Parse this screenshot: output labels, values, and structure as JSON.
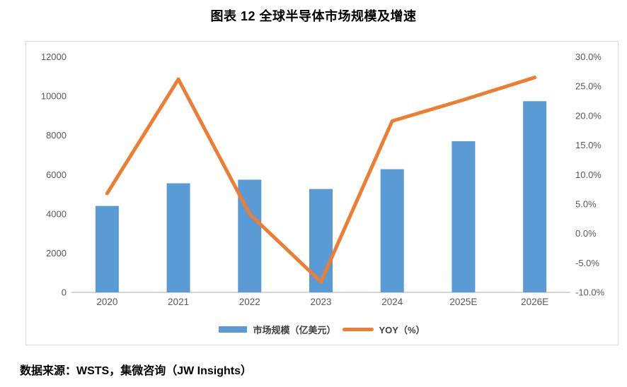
{
  "header": {
    "title": "图表 12 全球半导体市场规模及增速"
  },
  "footer": {
    "source": "数据来源：WSTS，集微咨询（JW Insights）"
  },
  "legend": {
    "items": [
      {
        "label": "市场规模（亿美元）",
        "type": "bar"
      },
      {
        "label": "YOY（%）",
        "type": "line"
      }
    ]
  },
  "colors": {
    "bar": "#5B9BD5",
    "line": "#ED7D31",
    "axis_text": "#595959",
    "axis_line": "#D6D6D6",
    "chart_border": "#D9D9D9",
    "legend_text": "#404040",
    "title_text": "#000000"
  },
  "chart_data": {
    "type": "combo bar+line",
    "title": "图表 12 全球半导体市场规模及增速",
    "categories": [
      "2020",
      "2021",
      "2022",
      "2023",
      "2024",
      "2025E",
      "2026E"
    ],
    "series": [
      {
        "name": "市场规模（亿美元）",
        "type": "bar",
        "axis": "left",
        "values": [
          4404,
          5559,
          5741,
          5268,
          6276,
          7700,
          9740
        ]
      },
      {
        "name": "YOY（%）",
        "type": "line",
        "axis": "right",
        "values": [
          6.8,
          26.2,
          3.3,
          -8.2,
          19.1,
          22.7,
          26.5
        ]
      }
    ],
    "left_axis": {
      "ticks": [
        12000,
        10000,
        8000,
        6000,
        4000,
        2000,
        0
      ],
      "min": 0,
      "max": 12000
    },
    "right_axis": {
      "tick_labels": [
        "30.0%",
        "25.0%",
        "20.0%",
        "15.0%",
        "10.0%",
        "5.0%",
        "0.0%",
        "-5.0%",
        "-10.0%"
      ],
      "tick_values": [
        30,
        25,
        20,
        15,
        10,
        5,
        0,
        -5,
        -10
      ],
      "min": -10,
      "max": 30
    },
    "grid": false,
    "legend_position": "bottom",
    "source": "数据来源：WSTS，集微咨询（JW Insights）"
  }
}
